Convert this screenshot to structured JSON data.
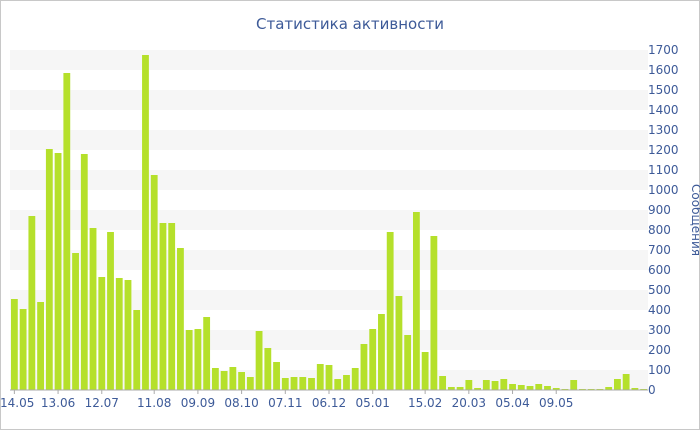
{
  "chart_data": {
    "type": "bar",
    "title": "Статистика активности",
    "xlabel": "",
    "ylabel": "Сообщения",
    "ylim": [
      0,
      1700
    ],
    "y_ticks": [
      0,
      100,
      200,
      300,
      400,
      500,
      600,
      700,
      800,
      900,
      1000,
      1100,
      1200,
      1300,
      1400,
      1500,
      1600,
      1700
    ],
    "x_tick_labels": [
      {
        "label": "14.05",
        "index": 0
      },
      {
        "label": "13.06",
        "index": 5
      },
      {
        "label": "13.06",
        "index": 5
      },
      {
        "label": "12.07",
        "index": 10
      },
      {
        "label": "11.08",
        "index": 16
      },
      {
        "label": "09.09",
        "index": 21
      },
      {
        "label": "08.10",
        "index": 26
      },
      {
        "label": "07.11",
        "index": 31
      },
      {
        "label": "06.12",
        "index": 36
      },
      {
        "label": "05.01",
        "index": 41
      },
      {
        "label": "15.02",
        "index": 47
      },
      {
        "label": "20.03",
        "index": 52
      },
      {
        "label": "05.04",
        "index": 57
      },
      {
        "label": "09.05",
        "index": 62
      }
    ],
    "values": [
      455,
      405,
      870,
      440,
      1205,
      1185,
      1585,
      685,
      1180,
      810,
      565,
      790,
      560,
      550,
      400,
      1675,
      1075,
      835,
      835,
      710,
      300,
      305,
      365,
      110,
      95,
      115,
      90,
      65,
      295,
      210,
      140,
      60,
      65,
      65,
      60,
      130,
      125,
      55,
      75,
      110,
      230,
      305,
      380,
      790,
      470,
      275,
      890,
      190,
      770,
      70,
      15,
      15,
      50,
      10,
      50,
      45,
      55,
      30,
      25,
      20,
      30,
      20,
      10,
      5,
      50,
      5,
      5,
      5,
      15,
      55,
      80,
      10,
      5
    ],
    "grid": true,
    "bar_color": "#b5e02b",
    "band_color": "#f6f6f6",
    "text_color": "#3d5a98"
  }
}
